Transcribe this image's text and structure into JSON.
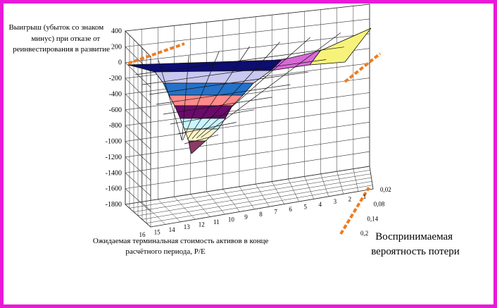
{
  "chart_data": {
    "type": "surface",
    "z_title_lines": [
      "Выигрыш (убыток со знаком",
      "минус) при отказе от",
      "реинвестирования в развитие"
    ],
    "z_ticks": [
      400,
      200,
      0,
      -200,
      -400,
      -600,
      -800,
      -1000,
      -1200,
      -1400,
      -1600,
      -1800
    ],
    "zlim": [
      -1800,
      400
    ],
    "x_title_lines": [
      "Ожидаемая терминальная стоимость активов в конце",
      "расчётного периода, P/E"
    ],
    "x_ticks": [
      16,
      15,
      14,
      13,
      12,
      11,
      10,
      9,
      8,
      7,
      6,
      5,
      4,
      3,
      2,
      1
    ],
    "y_title_lines": [
      "Воспринимаемая",
      "вероятность потери"
    ],
    "y_ticks": [
      "0,02",
      "0,08",
      "0,14",
      "0,2"
    ],
    "surface_band_colors": [
      "#f7f37a",
      "#d86ad8",
      "#0d0d72",
      "#c8c8f0",
      "#2672c8",
      "#ff8a8a",
      "#6a0a6a",
      "#c9f5ff",
      "#fff4c8",
      "#8a3c66"
    ],
    "accent_color": "#f07b1f",
    "frame_color": "#e81ad8"
  }
}
